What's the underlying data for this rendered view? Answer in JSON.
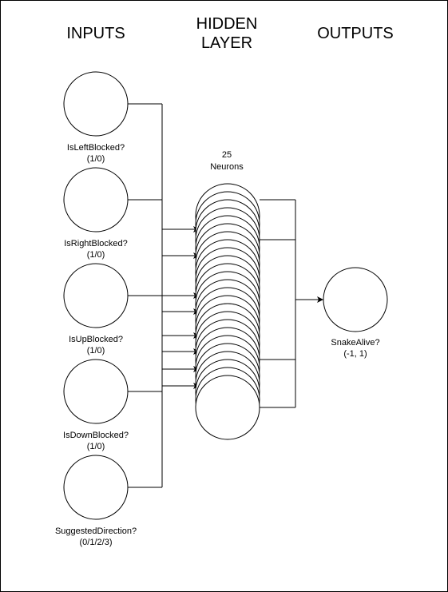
{
  "headers": {
    "inputs": "INPUTS",
    "hidden_line1": "HIDDEN",
    "hidden_line2": "LAYER",
    "outputs": "OUTPUTS"
  },
  "hidden": {
    "count_label": "25",
    "unit_label": "Neurons",
    "stacked_circles": 25
  },
  "inputs": [
    {
      "name": "IsLeftBlocked?",
      "range": "(1/0)"
    },
    {
      "name": "IsRightBlocked?",
      "range": "(1/0)"
    },
    {
      "name": "IsUpBlocked?",
      "range": "(1/0)"
    },
    {
      "name": "IsDownBlocked?",
      "range": "(1/0)"
    },
    {
      "name": "SuggestedDirection?",
      "range": "(0/1/2/3)"
    }
  ],
  "output": {
    "name": "SnakeAlive?",
    "range": "(-1, 1)"
  },
  "colors": {
    "stroke": "#000000",
    "background": "#ffffff"
  }
}
